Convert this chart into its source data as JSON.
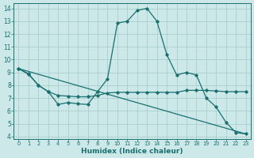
{
  "xlabel": "Humidex (Indice chaleur)",
  "background_color": "#cce8e8",
  "grid_color": "#aacfcf",
  "line_color": "#1a7070",
  "xlim": [
    -0.5,
    23.5
  ],
  "ylim": [
    3.8,
    14.4
  ],
  "x_ticks": [
    0,
    1,
    2,
    3,
    4,
    5,
    6,
    7,
    8,
    9,
    10,
    11,
    12,
    13,
    14,
    15,
    16,
    17,
    18,
    19,
    20,
    21,
    22,
    23
  ],
  "y_ticks": [
    4,
    5,
    6,
    7,
    8,
    9,
    10,
    11,
    12,
    13,
    14
  ],
  "line1_x": [
    0,
    1,
    2,
    3,
    4,
    5,
    6,
    7,
    8,
    9,
    10,
    11,
    12,
    13,
    14,
    15,
    16,
    17,
    18,
    19,
    20,
    21,
    22,
    23
  ],
  "line1_y": [
    9.3,
    8.9,
    8.0,
    7.5,
    6.5,
    6.65,
    6.55,
    6.5,
    7.5,
    8.5,
    12.85,
    13.0,
    13.85,
    14.0,
    13.0,
    10.4,
    8.8,
    9.0,
    8.8,
    7.0,
    6.3,
    5.1,
    4.3,
    4.2
  ],
  "line2_x": [
    0,
    1,
    2,
    3,
    4,
    5,
    6,
    7,
    8,
    9,
    10,
    11,
    12,
    13,
    14,
    15,
    16,
    17,
    18,
    19,
    20,
    21,
    22,
    23
  ],
  "line2_y": [
    9.3,
    8.85,
    8.0,
    7.5,
    7.2,
    7.15,
    7.1,
    7.1,
    7.2,
    7.4,
    7.45,
    7.45,
    7.45,
    7.45,
    7.45,
    7.45,
    7.45,
    7.6,
    7.6,
    7.6,
    7.55,
    7.5,
    7.5,
    7.5
  ],
  "line3_x": [
    0,
    23
  ],
  "line3_y": [
    9.3,
    4.2
  ]
}
